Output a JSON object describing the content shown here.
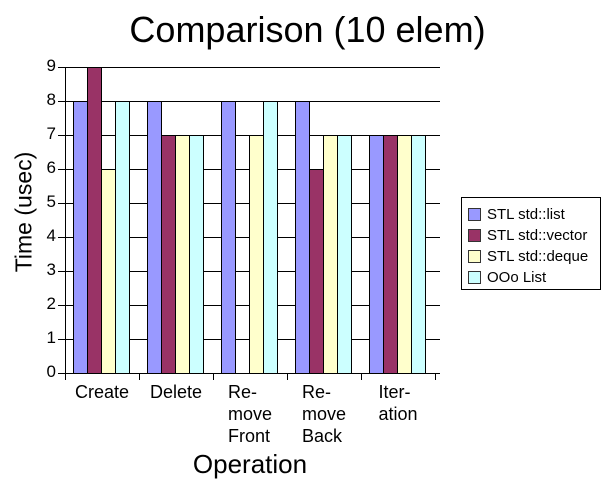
{
  "chart_data": {
    "type": "bar",
    "title": "Comparison (10 elem)",
    "xlabel": "Operation",
    "ylabel": "Time (usec)",
    "ylim": [
      0,
      9
    ],
    "ytick_interval": 1,
    "grid": true,
    "legend_position": "right",
    "background": "#ffffff",
    "axis_color": "#000000",
    "categories": [
      "Create",
      "Delete",
      "Remove Front",
      "Remove Back",
      "Iteration"
    ],
    "category_label_lines": [
      [
        "Create"
      ],
      [
        "Delete"
      ],
      [
        "Re-",
        "move",
        "Front"
      ],
      [
        "Re-",
        "move",
        "Back"
      ],
      [
        "Iter-",
        "ation"
      ]
    ],
    "series": [
      {
        "name": "STL std::list",
        "color": "#9999FF",
        "values": [
          8,
          8,
          8,
          8,
          7
        ]
      },
      {
        "name": "STL std::vector",
        "color": "#993366",
        "values": [
          9,
          7,
          0,
          6,
          7
        ]
      },
      {
        "name": "STL std::deque",
        "color": "#FFFFCC",
        "values": [
          6,
          7,
          7,
          7,
          7
        ]
      },
      {
        "name": "OOo List",
        "color": "#CCFFFF",
        "values": [
          8,
          7,
          8,
          7,
          7
        ]
      }
    ]
  }
}
